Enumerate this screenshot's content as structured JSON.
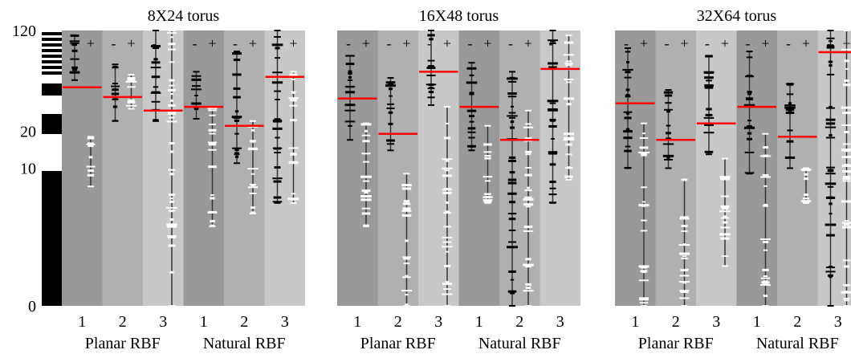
{
  "chart_data": {
    "type": "beanplot",
    "y_axis": {
      "scale": "log1p",
      "ticks": [
        0,
        10,
        20,
        120
      ],
      "tick_labels": [
        "0",
        "10",
        "20",
        "120"
      ],
      "ylim": [
        0,
        120
      ]
    },
    "sign_labels": [
      "-",
      "+"
    ],
    "group_labels": [
      "Planar RBF",
      "Natural RBF"
    ],
    "category_labels": [
      "1",
      "2",
      "3"
    ],
    "panels": [
      {
        "title": "8X24 torus",
        "groups": [
          {
            "name": "Planar RBF",
            "categories": [
              {
                "label": "1",
                "mean": 44,
                "minus": {
                  "lo": 50,
                  "hi": 110
                },
                "plus": {
                  "lo": 7,
                  "hi": 18
                }
              },
              {
                "label": "2",
                "mean": 37,
                "minus": {
                  "lo": 24,
                  "hi": 66
                },
                "plus": {
                  "lo": 30,
                  "hi": 55
                }
              },
              {
                "label": "3",
                "mean": 29,
                "minus": {
                  "lo": 24,
                  "hi": 120
                },
                "plus": {
                  "lo": 0,
                  "hi": 120
                }
              }
            ]
          },
          {
            "name": "Natural RBF",
            "categories": [
              {
                "label": "1",
                "mean": 31,
                "minus": {
                  "lo": 25,
                  "hi": 58
                },
                "plus": {
                  "lo": 3,
                  "hi": 31
                }
              },
              {
                "label": "2",
                "mean": 22,
                "minus": {
                  "lo": 11,
                  "hi": 83
                },
                "plus": {
                  "lo": 4,
                  "hi": 24
                }
              },
              {
                "label": "3",
                "mean": 53,
                "minus": {
                  "lo": 5,
                  "hi": 120
                },
                "plus": {
                  "lo": 5,
                  "hi": 58
                }
              }
            ]
          }
        ]
      },
      {
        "title": "16X48 torus",
        "groups": [
          {
            "name": "Planar RBF",
            "categories": [
              {
                "label": "1",
                "mean": 36,
                "minus": {
                  "lo": 17,
                  "hi": 77
                },
                "plus": {
                  "lo": 3,
                  "hi": 23
                }
              },
              {
                "label": "2",
                "mean": 19,
                "minus": {
                  "lo": 14,
                  "hi": 52
                },
                "plus": {
                  "lo": 0,
                  "hi": 9
                }
              },
              {
                "label": "3",
                "mean": 58,
                "minus": {
                  "lo": 32,
                  "hi": 120
                },
                "plus": {
                  "lo": 0,
                  "hi": 31
                }
              }
            ]
          },
          {
            "name": "Natural RBF",
            "categories": [
              {
                "label": "1",
                "mean": 31,
                "minus": {
                  "lo": 14,
                  "hi": 68
                },
                "plus": {
                  "lo": 5,
                  "hi": 22
                }
              },
              {
                "label": "2",
                "mean": 17,
                "minus": {
                  "lo": 0,
                  "hi": 58
                },
                "plus": {
                  "lo": 0,
                  "hi": 29
                }
              },
              {
                "label": "3",
                "mean": 61,
                "minus": {
                  "lo": 5,
                  "hi": 120
                },
                "plus": {
                  "lo": 8,
                  "hi": 110
                }
              }
            ]
          }
        ]
      },
      {
        "title": "32X64 torus",
        "groups": [
          {
            "name": "Planar RBF",
            "categories": [
              {
                "label": "1",
                "mean": 33,
                "minus": {
                  "lo": 10,
                  "hi": 88
                },
                "plus": {
                  "lo": 0,
                  "hi": 23
                }
              },
              {
                "label": "2",
                "mean": 17,
                "minus": {
                  "lo": 10,
                  "hi": 42
                },
                "plus": {
                  "lo": 0,
                  "hi": 8
                }
              },
              {
                "label": "3",
                "mean": 23,
                "minus": {
                  "lo": 13,
                  "hi": 77
                },
                "plus": {
                  "lo": 1,
                  "hi": 12
                }
              }
            ]
          },
          {
            "name": "Natural RBF",
            "categories": [
              {
                "label": "1",
                "mean": 31,
                "minus": {
                  "lo": 9,
                  "hi": 83
                },
                "plus": {
                  "lo": 0,
                  "hi": 19
                }
              },
              {
                "label": "2",
                "mean": 18,
                "minus": {
                  "lo": 10,
                  "hi": 47
                },
                "plus": {
                  "lo": 5,
                  "hi": 10
                }
              },
              {
                "label": "3",
                "mean": 82,
                "minus": {
                  "lo": 0,
                  "hi": 120
                },
                "plus": {
                  "lo": 0,
                  "hi": 120
                }
              }
            ]
          }
        ]
      }
    ]
  }
}
